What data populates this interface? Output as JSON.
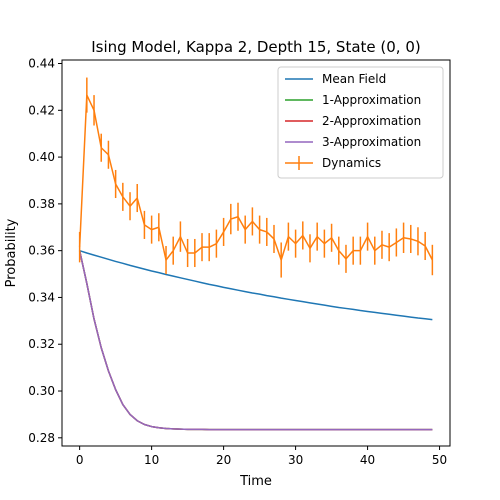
{
  "chart_data": {
    "type": "line",
    "title": "Ising Model, Kappa 2, Depth 15, State (0, 0)",
    "xlabel": "Time",
    "ylabel": "Probability",
    "xlim": [
      -2.45,
      51.45
    ],
    "ylim": [
      0.2765,
      0.4415
    ],
    "xticks": [
      0,
      10,
      20,
      30,
      40,
      50
    ],
    "yticks": [
      0.28,
      0.3,
      0.32,
      0.34,
      0.36,
      0.38,
      0.4,
      0.42,
      0.44
    ],
    "ytick_labels": [
      "0.28",
      "0.30",
      "0.32",
      "0.34",
      "0.36",
      "0.38",
      "0.40",
      "0.42",
      "0.44"
    ],
    "grid": false,
    "legend_position": "top-right",
    "x": [
      0,
      1,
      2,
      3,
      4,
      5,
      6,
      7,
      8,
      9,
      10,
      11,
      12,
      13,
      14,
      15,
      16,
      17,
      18,
      19,
      20,
      21,
      22,
      23,
      24,
      25,
      26,
      27,
      28,
      29,
      30,
      31,
      32,
      33,
      34,
      35,
      36,
      37,
      38,
      39,
      40,
      41,
      42,
      43,
      44,
      45,
      46,
      47,
      48,
      49
    ],
    "series": [
      {
        "name": "Mean Field",
        "color": "#1f77b4",
        "values": [
          0.36,
          0.359,
          0.3581,
          0.3572,
          0.3563,
          0.3554,
          0.3546,
          0.3537,
          0.3529,
          0.3521,
          0.3513,
          0.3506,
          0.3498,
          0.3491,
          0.3484,
          0.3477,
          0.347,
          0.3463,
          0.3456,
          0.345,
          0.3443,
          0.3437,
          0.3431,
          0.3425,
          0.3419,
          0.3414,
          0.3408,
          0.3403,
          0.3397,
          0.3392,
          0.3387,
          0.3382,
          0.3377,
          0.3372,
          0.3367,
          0.3362,
          0.3357,
          0.3353,
          0.3349,
          0.3344,
          0.334,
          0.3336,
          0.3332,
          0.3328,
          0.3324,
          0.332,
          0.3316,
          0.3312,
          0.3309,
          0.3305
        ]
      },
      {
        "name": "1-Approximation",
        "color": "#2ca02c",
        "values": [
          0.36,
          0.346,
          0.3308,
          0.3185,
          0.3086,
          0.3006,
          0.2942,
          0.29,
          0.2873,
          0.2857,
          0.2848,
          0.2843,
          0.284,
          0.2838,
          0.2837,
          0.2836,
          0.2836,
          0.2836,
          0.2835,
          0.2835,
          0.2835,
          0.2835,
          0.2835,
          0.2835,
          0.2835,
          0.2835,
          0.2835,
          0.2835,
          0.2835,
          0.2835,
          0.2835,
          0.2835,
          0.2835,
          0.2835,
          0.2835,
          0.2835,
          0.2835,
          0.2835,
          0.2835,
          0.2835,
          0.2835,
          0.2835,
          0.2835,
          0.2835,
          0.2835,
          0.2835,
          0.2835,
          0.2835,
          0.2835,
          0.2835
        ]
      },
      {
        "name": "2-Approximation",
        "color": "#d62728",
        "values": [
          0.36,
          0.346,
          0.3308,
          0.3185,
          0.3086,
          0.3006,
          0.2942,
          0.29,
          0.2873,
          0.2857,
          0.2848,
          0.2843,
          0.284,
          0.2838,
          0.2837,
          0.2836,
          0.2836,
          0.2836,
          0.2835,
          0.2835,
          0.2835,
          0.2835,
          0.2835,
          0.2835,
          0.2835,
          0.2835,
          0.2835,
          0.2835,
          0.2835,
          0.2835,
          0.2835,
          0.2835,
          0.2835,
          0.2835,
          0.2835,
          0.2835,
          0.2835,
          0.2835,
          0.2835,
          0.2835,
          0.2835,
          0.2835,
          0.2835,
          0.2835,
          0.2835,
          0.2835,
          0.2835,
          0.2835,
          0.2835,
          0.2835
        ]
      },
      {
        "name": "3-Approximation",
        "color": "#9467bd",
        "values": [
          0.36,
          0.346,
          0.3308,
          0.3185,
          0.3086,
          0.3006,
          0.2942,
          0.29,
          0.2873,
          0.2857,
          0.2848,
          0.2843,
          0.284,
          0.2838,
          0.2837,
          0.2836,
          0.2836,
          0.2836,
          0.2835,
          0.2835,
          0.2835,
          0.2835,
          0.2835,
          0.2835,
          0.2835,
          0.2835,
          0.2835,
          0.2835,
          0.2835,
          0.2835,
          0.2835,
          0.2835,
          0.2835,
          0.2835,
          0.2835,
          0.2835,
          0.2835,
          0.2835,
          0.2835,
          0.2835,
          0.2835,
          0.2835,
          0.2835,
          0.2835,
          0.2835,
          0.2835,
          0.2835,
          0.2835,
          0.2835,
          0.2835
        ]
      },
      {
        "name": "Dynamics",
        "color": "#ff7f0e",
        "errorbars": true,
        "values": [
          0.3615,
          0.4265,
          0.42,
          0.404,
          0.401,
          0.3885,
          0.383,
          0.379,
          0.3825,
          0.371,
          0.369,
          0.37,
          0.356,
          0.36,
          0.366,
          0.359,
          0.359,
          0.3615,
          0.3615,
          0.363,
          0.368,
          0.3735,
          0.3745,
          0.369,
          0.3725,
          0.369,
          0.368,
          0.365,
          0.356,
          0.366,
          0.363,
          0.3665,
          0.361,
          0.366,
          0.363,
          0.3655,
          0.36,
          0.3565,
          0.36,
          0.36,
          0.366,
          0.36,
          0.3625,
          0.3615,
          0.3635,
          0.3655,
          0.365,
          0.364,
          0.362,
          0.356
        ],
        "errors": [
          0.0065,
          0.0075,
          0.0065,
          0.006,
          0.006,
          0.006,
          0.006,
          0.006,
          0.006,
          0.006,
          0.006,
          0.006,
          0.006,
          0.006,
          0.0065,
          0.006,
          0.006,
          0.006,
          0.006,
          0.006,
          0.006,
          0.0065,
          0.006,
          0.006,
          0.006,
          0.006,
          0.006,
          0.006,
          0.0075,
          0.006,
          0.006,
          0.006,
          0.006,
          0.006,
          0.006,
          0.006,
          0.006,
          0.006,
          0.006,
          0.006,
          0.006,
          0.006,
          0.006,
          0.006,
          0.006,
          0.0065,
          0.006,
          0.006,
          0.006,
          0.0065
        ]
      }
    ]
  }
}
